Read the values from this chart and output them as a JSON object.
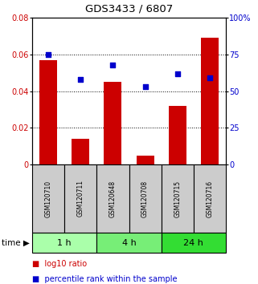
{
  "title": "GDS3433 / 6807",
  "samples": [
    "GSM120710",
    "GSM120711",
    "GSM120648",
    "GSM120708",
    "GSM120715",
    "GSM120716"
  ],
  "log10_ratio": [
    0.057,
    0.014,
    0.045,
    0.005,
    0.032,
    0.069
  ],
  "percentile_rank": [
    75,
    58,
    68,
    53,
    62,
    59
  ],
  "bar_color": "#cc0000",
  "dot_color": "#0000cc",
  "ylim_left": [
    0,
    0.08
  ],
  "ylim_right": [
    0,
    100
  ],
  "yticks_left": [
    0,
    0.02,
    0.04,
    0.06,
    0.08
  ],
  "ytick_labels_left": [
    "0",
    "0.02",
    "0.04",
    "0.06",
    "0.08"
  ],
  "yticks_right": [
    0,
    25,
    50,
    75,
    100
  ],
  "ytick_labels_right": [
    "0",
    "25",
    "50",
    "75",
    "100%"
  ],
  "group_colors": [
    "#aaffaa",
    "#77ee77",
    "#33dd33"
  ],
  "sample_bg_color": "#cccccc",
  "bar_width": 0.55,
  "legend_bar_label": "log10 ratio",
  "legend_dot_label": "percentile rank within the sample",
  "dotted_yticks": [
    0.02,
    0.04,
    0.06
  ]
}
